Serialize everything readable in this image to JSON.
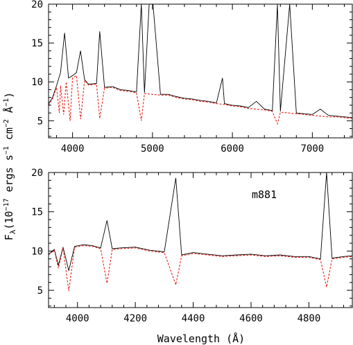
{
  "ylabel": "F_λ(10^-17 ergs s^-1 cm^-2 Å^-1)",
  "ylabel_parts": {
    "base": "F",
    "sub": "λ",
    "p1": "(10",
    "e1": "−17",
    "p2": " ergs s",
    "e2": "−1",
    "p3": " cm",
    "e3": "−2",
    "p4": " Å",
    "e4": "−1",
    "p5": ")"
  },
  "xlabel": "Wavelength (Å)",
  "colors": {
    "observed": "#000000",
    "model": "#e8201a"
  },
  "chart_data": [
    {
      "type": "line",
      "panel": "top",
      "title": "",
      "xlabel": "",
      "ylabel": "",
      "xlim": [
        3700,
        7500
      ],
      "ylim": [
        2.8,
        20
      ],
      "xticks": [
        4000,
        5000,
        6000,
        7000
      ],
      "yticks": [
        5,
        10,
        15,
        20
      ],
      "grid": false,
      "series": [
        {
          "style": "solid",
          "x": [
            3700,
            3750,
            3800,
            3850,
            3900,
            3950,
            4000,
            4050,
            4100,
            4150,
            4200,
            4300,
            4340,
            4400,
            4500,
            4600,
            4700,
            4800,
            4861,
            4900,
            4959,
            5007,
            5100,
            5200,
            5300,
            5400,
            5500,
            5600,
            5700,
            5800,
            5876,
            5900,
            6000,
            6100,
            6200,
            6300,
            6400,
            6500,
            6563,
            6600,
            6717,
            6800,
            6900,
            7000,
            7100,
            7200,
            7300,
            7400,
            7500
          ],
          "y": [
            7.2,
            8.0,
            9.5,
            11.2,
            16.3,
            10.5,
            10.8,
            11.2,
            14.0,
            10.3,
            9.7,
            9.8,
            16.5,
            9.3,
            9.4,
            9.0,
            8.9,
            8.7,
            20,
            8.6,
            20,
            20,
            8.4,
            8.4,
            8.1,
            7.9,
            7.8,
            7.6,
            7.5,
            7.3,
            10.5,
            7.2,
            7.0,
            6.9,
            6.7,
            7.5,
            6.5,
            6.3,
            20,
            6.2,
            20,
            6.0,
            5.9,
            5.8,
            6.5,
            5.7,
            5.6,
            5.5,
            5.4
          ]
        },
        {
          "style": "dashed",
          "x": [
            3700,
            3750,
            3800,
            3835,
            3850,
            3889,
            3920,
            3970,
            4000,
            4050,
            4102,
            4150,
            4200,
            4300,
            4340,
            4400,
            4500,
            4600,
            4700,
            4800,
            4861,
            4900,
            5000,
            5100,
            5200,
            5300,
            5400,
            5500,
            5600,
            5700,
            5800,
            5900,
            6000,
            6100,
            6200,
            6300,
            6400,
            6500,
            6563,
            6600,
            6700,
            6800,
            6900,
            7000,
            7100,
            7200,
            7300,
            7400,
            7500
          ],
          "y": [
            7.0,
            7.8,
            9.3,
            6.0,
            9.5,
            5.8,
            10.0,
            5.0,
            10.5,
            10.8,
            5.2,
            10.2,
            9.6,
            9.7,
            5.3,
            9.2,
            9.3,
            8.9,
            8.8,
            8.6,
            5.0,
            8.5,
            8.4,
            8.3,
            8.3,
            8.0,
            7.8,
            7.7,
            7.5,
            7.4,
            7.2,
            7.1,
            6.9,
            6.8,
            6.6,
            6.5,
            6.4,
            6.2,
            4.6,
            6.1,
            6.0,
            5.9,
            5.8,
            5.7,
            5.6,
            5.5,
            5.5,
            5.4,
            5.3
          ]
        }
      ]
    },
    {
      "type": "line",
      "panel": "bottom",
      "title": "",
      "xlabel": "Wavelength (Å)",
      "ylabel": "",
      "xlim": [
        3900,
        4950
      ],
      "ylim": [
        2.8,
        20
      ],
      "xticks": [
        4000,
        4200,
        4400,
        4600,
        4800
      ],
      "yticks": [
        5,
        10,
        15,
        20
      ],
      "grid": false,
      "annotation": "m881",
      "series": [
        {
          "style": "solid",
          "x": [
            3900,
            3920,
            3934,
            3950,
            3970,
            3990,
            4020,
            4050,
            4080,
            4102,
            4120,
            4150,
            4200,
            4250,
            4300,
            4340,
            4360,
            4400,
            4450,
            4500,
            4550,
            4600,
            4650,
            4700,
            4750,
            4800,
            4840,
            4861,
            4880,
            4920,
            4950
          ],
          "y": [
            9.6,
            10.2,
            8.2,
            10.5,
            7.5,
            10.6,
            10.8,
            10.7,
            10.4,
            13.9,
            10.3,
            10.4,
            10.5,
            10.1,
            9.9,
            19.3,
            9.5,
            9.8,
            9.6,
            9.4,
            9.5,
            9.6,
            9.4,
            9.5,
            9.3,
            9.3,
            9.0,
            20,
            9.1,
            9.3,
            9.4
          ]
        },
        {
          "style": "dashed",
          "x": [
            3900,
            3920,
            3934,
            3950,
            3970,
            3990,
            4020,
            4050,
            4080,
            4102,
            4120,
            4150,
            4200,
            4250,
            4300,
            4340,
            4360,
            4400,
            4450,
            4500,
            4550,
            4600,
            4650,
            4700,
            4750,
            4800,
            4840,
            4861,
            4880,
            4920,
            4950
          ],
          "y": [
            9.5,
            10.1,
            7.8,
            10.4,
            4.9,
            10.5,
            10.7,
            10.6,
            10.3,
            5.9,
            10.2,
            10.3,
            10.4,
            10.0,
            9.8,
            5.7,
            9.4,
            9.7,
            9.5,
            9.3,
            9.4,
            9.5,
            9.3,
            9.4,
            9.2,
            9.2,
            8.9,
            5.4,
            9.0,
            9.2,
            9.3
          ]
        }
      ]
    }
  ]
}
